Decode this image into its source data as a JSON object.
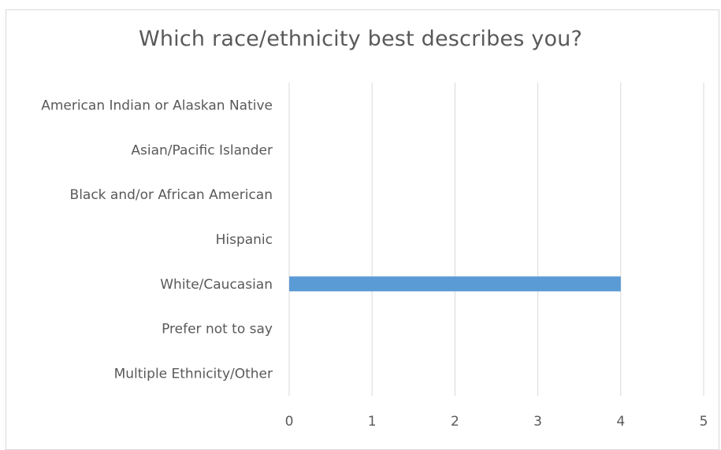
{
  "chart_data": {
    "type": "bar",
    "orientation": "horizontal",
    "title": "Which race/ethnicity best describes you?",
    "categories": [
      "American Indian or Alaskan Native",
      "Asian/Pacific Islander",
      "Black and/or African American",
      "Hispanic",
      "White/Caucasian",
      "Prefer not to say",
      "Multiple Ethnicity/Other"
    ],
    "values": [
      0,
      0,
      0,
      0,
      4,
      0,
      0
    ],
    "xlim": [
      0,
      5
    ],
    "xticks": [
      "0",
      "1",
      "2",
      "3",
      "4",
      "5"
    ],
    "grid": true,
    "bar_color": "#5b9bd5",
    "gridline_color": "#d9d9d9"
  }
}
